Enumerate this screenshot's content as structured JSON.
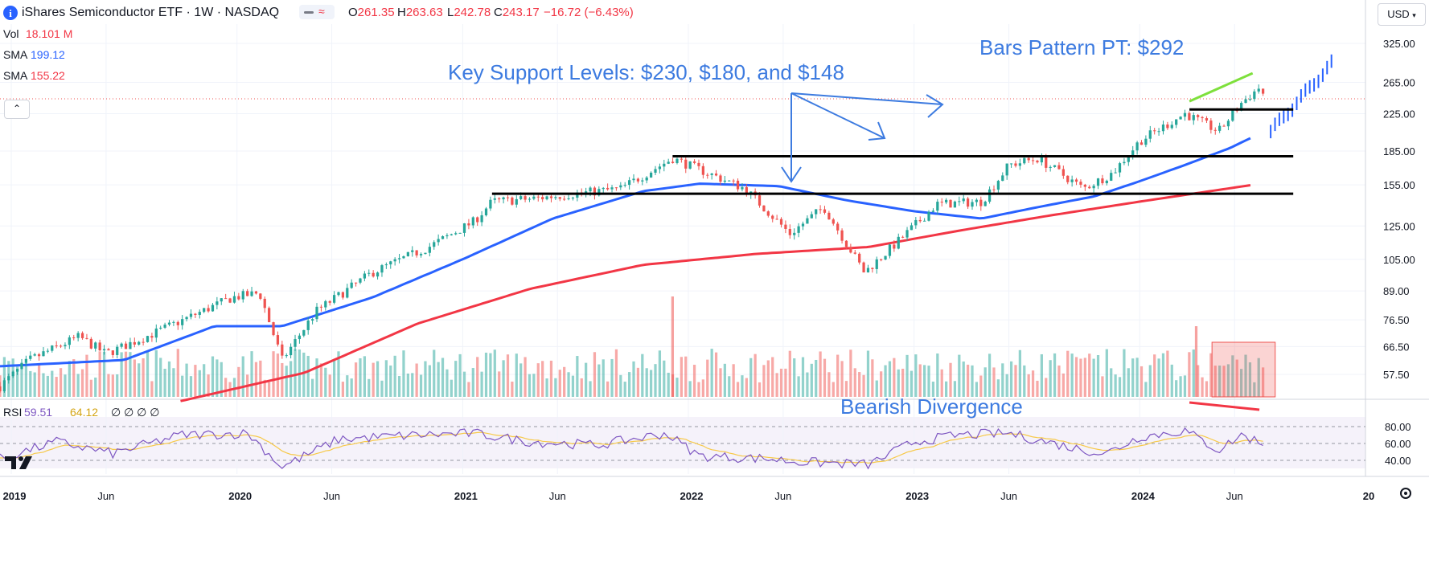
{
  "header": {
    "info_icon": "info-icon",
    "symbol_title": "iShares Semiconductor ETF · 1W · NASDAQ",
    "open_label": "O",
    "open_value": "261.35",
    "high_label": "H",
    "high_value": "263.63",
    "low_label": "L",
    "low_value": "242.78",
    "close_label": "C",
    "close_value": "243.17",
    "change": "−16.72 (−6.43%)",
    "currency": "USD"
  },
  "legend": {
    "vol_label": "Vol",
    "vol_value": "18.101 M",
    "sma1_label": "SMA",
    "sma1_value": "199.12",
    "sma2_label": "SMA",
    "sma2_value": "155.22",
    "rsi_label": "RSI",
    "rsi_value": "59.51",
    "rsi_ma_value": "64.12",
    "rsi_extra": "∅ ∅ ∅ ∅"
  },
  "annotations": {
    "key_support": "Key Support Levels: $230, $180, and $148",
    "bars_pattern": "Bars Pattern PT: $292",
    "bearish_divergence": "Bearish Divergence"
  },
  "colors": {
    "up": "#26a69a",
    "down": "#ef5350",
    "sma_fast": "#2962ff",
    "sma_slow": "#f23645",
    "rsi": "#7e57c2",
    "rsi_ma": "#f7c948",
    "annotation": "#3d7be0",
    "green_trend": "#7ee03c"
  },
  "chart_data": {
    "type": "candlestick",
    "title": "iShares Semiconductor ETF · 1W · NASDAQ",
    "price_axis_ticks": [
      325,
      265,
      225,
      185,
      155,
      125,
      105,
      89,
      76.5,
      66.5,
      57.5
    ],
    "price_axis_labels": [
      "325.00",
      "265.00",
      "225.00",
      "185.00",
      "155.00",
      "125.00",
      "105.00",
      "89.00",
      "76.50",
      "66.50",
      "57.50"
    ],
    "rsi_axis_labels": [
      "80.00",
      "60.00",
      "40.00"
    ],
    "rsi_axis_ticks": [
      80,
      60,
      40
    ],
    "x_labels": [
      "2019",
      "Jun",
      "2020",
      "Jun",
      "2021",
      "Jun",
      "2022",
      "Jun",
      "2023",
      "Jun",
      "2024",
      "Jun",
      "20"
    ],
    "x_label_years": [
      2019.0,
      2019.42,
      2020.0,
      2020.42,
      2021.0,
      2021.42,
      2022.0,
      2022.42,
      2023.0,
      2023.42,
      2024.0,
      2024.42,
      2025.0
    ],
    "x_range": [
      2018.95,
      2025.0
    ],
    "price_anchors": [
      [
        2018.95,
        54
      ],
      [
        2019.08,
        62
      ],
      [
        2019.3,
        70
      ],
      [
        2019.42,
        64
      ],
      [
        2019.65,
        72
      ],
      [
        2019.98,
        86
      ],
      [
        2020.1,
        88
      ],
      [
        2020.2,
        62
      ],
      [
        2020.35,
        80
      ],
      [
        2020.6,
        98
      ],
      [
        2020.85,
        112
      ],
      [
        2021.05,
        128
      ],
      [
        2021.13,
        142
      ],
      [
        2021.3,
        144
      ],
      [
        2021.5,
        148
      ],
      [
        2021.7,
        152
      ],
      [
        2021.93,
        178
      ],
      [
        2022.0,
        172
      ],
      [
        2022.25,
        152
      ],
      [
        2022.45,
        120
      ],
      [
        2022.6,
        138
      ],
      [
        2022.78,
        98
      ],
      [
        2022.95,
        118
      ],
      [
        2023.1,
        140
      ],
      [
        2023.3,
        142
      ],
      [
        2023.42,
        172
      ],
      [
        2023.55,
        178
      ],
      [
        2023.75,
        152
      ],
      [
        2023.88,
        165
      ],
      [
        2024.0,
        195
      ],
      [
        2024.2,
        225
      ],
      [
        2024.35,
        205
      ],
      [
        2024.45,
        238
      ],
      [
        2024.53,
        258
      ],
      [
        2024.56,
        243
      ]
    ],
    "projected_bars": {
      "start": 2024.58,
      "end": 2024.85,
      "from": 205,
      "to": 292
    },
    "sma_fast_anchors": [
      [
        2018.95,
        60
      ],
      [
        2019.5,
        62
      ],
      [
        2019.9,
        74
      ],
      [
        2020.2,
        74
      ],
      [
        2020.6,
        86
      ],
      [
        2021.0,
        105
      ],
      [
        2021.4,
        130
      ],
      [
        2021.8,
        150
      ],
      [
        2022.05,
        156
      ],
      [
        2022.4,
        154
      ],
      [
        2022.7,
        143
      ],
      [
        2023.0,
        135
      ],
      [
        2023.3,
        130
      ],
      [
        2023.55,
        138
      ],
      [
        2023.8,
        146
      ],
      [
        2024.0,
        158
      ],
      [
        2024.2,
        172
      ],
      [
        2024.4,
        188
      ],
      [
        2024.5,
        199
      ]
    ],
    "sma_slow_anchors": [
      [
        2019.75,
        50
      ],
      [
        2020.3,
        58
      ],
      [
        2020.8,
        75
      ],
      [
        2021.3,
        90
      ],
      [
        2021.8,
        102
      ],
      [
        2022.3,
        108
      ],
      [
        2022.8,
        112
      ],
      [
        2023.2,
        122
      ],
      [
        2023.6,
        132
      ],
      [
        2024.0,
        142
      ],
      [
        2024.5,
        155
      ]
    ],
    "support_levels": [
      230,
      180,
      148
    ],
    "support_start_years": [
      2024.22,
      2021.93,
      2021.13
    ],
    "support_end_year": 2024.68,
    "bars_pattern_pt": 292,
    "rsi_value": 59.51,
    "rsi_ma_value": 64.12,
    "rsi_anchors": [
      [
        2018.95,
        42
      ],
      [
        2019.2,
        62
      ],
      [
        2019.45,
        48
      ],
      [
        2019.75,
        70
      ],
      [
        2020.05,
        72
      ],
      [
        2020.2,
        32
      ],
      [
        2020.45,
        65
      ],
      [
        2020.8,
        70
      ],
      [
        2021.05,
        72
      ],
      [
        2021.3,
        62
      ],
      [
        2021.6,
        58
      ],
      [
        2021.9,
        72
      ],
      [
        2022.05,
        45
      ],
      [
        2022.35,
        42
      ],
      [
        2022.5,
        38
      ],
      [
        2022.8,
        35
      ],
      [
        2023.0,
        62
      ],
      [
        2023.2,
        70
      ],
      [
        2023.42,
        72
      ],
      [
        2023.7,
        55
      ],
      [
        2023.85,
        48
      ],
      [
        2024.0,
        68
      ],
      [
        2024.2,
        75
      ],
      [
        2024.35,
        52
      ],
      [
        2024.45,
        70
      ],
      [
        2024.55,
        60
      ]
    ],
    "volume_note": "weekly volume histogram; last bar 18.101M",
    "sma_fast_value": 199.12,
    "sma_slow_value": 155.22,
    "last_close": 243.17
  }
}
